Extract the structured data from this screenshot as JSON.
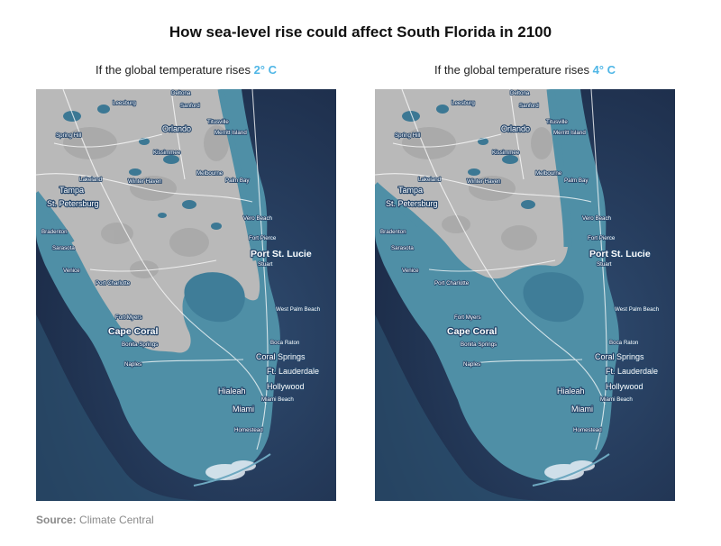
{
  "title": "How sea-level rise could affect South Florida in 2100",
  "panels": [
    {
      "caption": "If the global temperature rises ",
      "temp": "2° C"
    },
    {
      "caption": "If the global temperature rises ",
      "temp": "4° C"
    }
  ],
  "source": {
    "label": "Source:",
    "text": "Climate Central"
  },
  "colors": {
    "accent": "#4fb6e6",
    "ocean": "#1f2f4e",
    "flood": "#4f8fa6",
    "land": "#b9b9b9"
  },
  "cities": [
    "Deltona",
    "Leesburg",
    "Sanford",
    "Titusville",
    "Orlando",
    "Merritt Island",
    "Spring Hill",
    "Kissimmee",
    "Melbourne",
    "Lakeland",
    "Winter Haven",
    "Palm Bay",
    "Tampa",
    "St. Petersburg",
    "Vero Beach",
    "Bradenton",
    "Fort Pierce",
    "Sarasota",
    "Port St. Lucie",
    "Stuart",
    "Venice",
    "Port Charlotte",
    "West Palm Beach",
    "Fort Myers",
    "Cape Coral",
    "Bonita Springs",
    "Boca Raton",
    "Naples",
    "Coral Springs",
    "Ft. Lauderdale",
    "Hollywood",
    "Hialeah",
    "Miami Beach",
    "Miami",
    "Homestead"
  ]
}
